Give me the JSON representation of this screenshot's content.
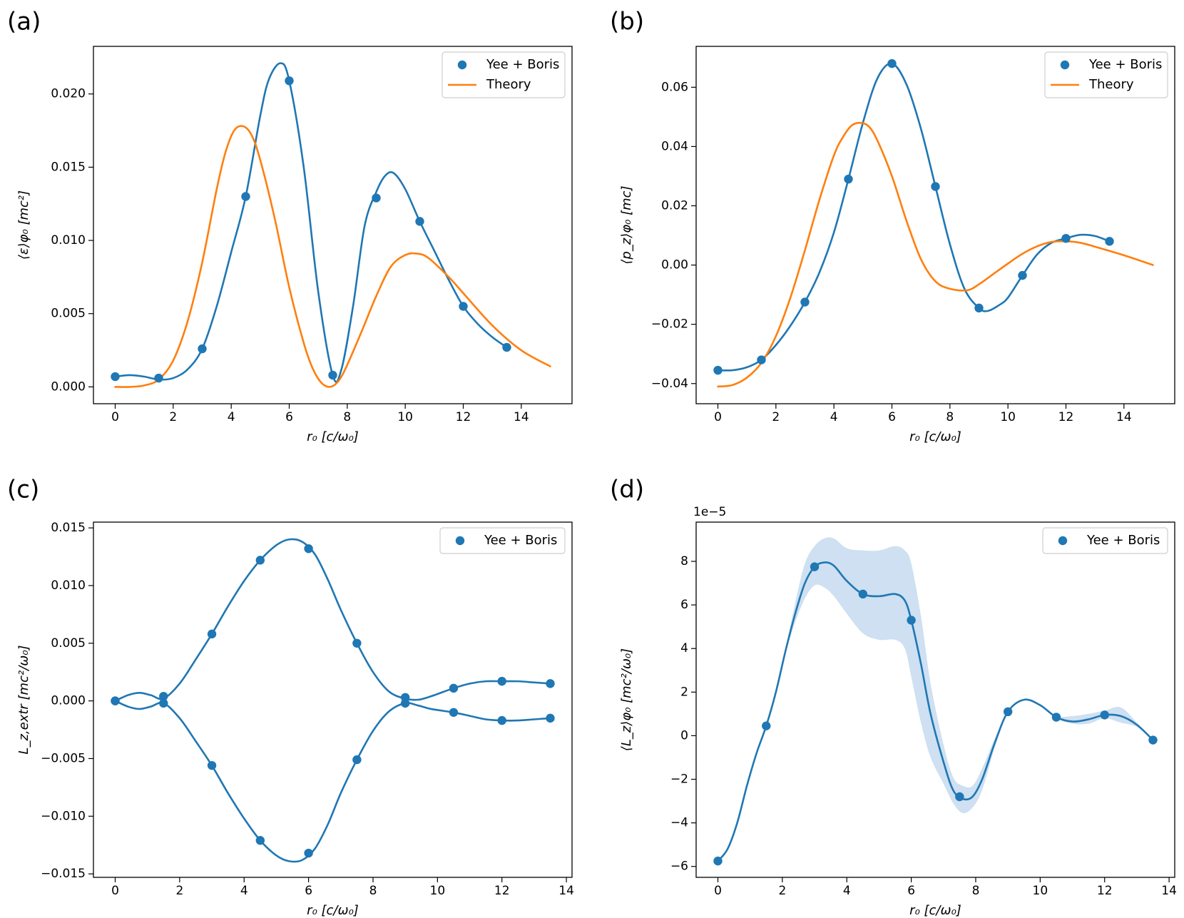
{
  "colors": {
    "series": "#1f77b4",
    "theory": "#ff7f0e",
    "band": "#c6dbef"
  },
  "panels": [
    {
      "id": "a",
      "label": "(a)",
      "xlabel": "r₀ [c/ω₀]",
      "ylabel": "⟨ε⟩φ₀ [mc²]",
      "legend": [
        "Yee + Boris",
        "Theory"
      ],
      "xlim": [
        -0.75,
        15.75
      ],
      "ylim": [
        -0.00115,
        0.02325
      ],
      "xticks": [
        0,
        2,
        4,
        6,
        8,
        10,
        12,
        14
      ],
      "xtick_labels": [
        "0",
        "2",
        "4",
        "6",
        "8",
        "10",
        "12",
        "14"
      ],
      "yticks": [
        0,
        0.005,
        0.01,
        0.015,
        0.02
      ],
      "ytick_labels": [
        "0.000",
        "0.005",
        "0.010",
        "0.015",
        "0.020"
      ],
      "offset": ""
    },
    {
      "id": "b",
      "label": "(b)",
      "xlabel": "r₀ [c/ω₀]",
      "ylabel": "⟨p_z⟩φ₀ [mc]",
      "legend": [
        "Yee + Boris",
        "Theory"
      ],
      "xlim": [
        -0.75,
        15.75
      ],
      "ylim": [
        -0.0468,
        0.0738
      ],
      "xticks": [
        0,
        2,
        4,
        6,
        8,
        10,
        12,
        14
      ],
      "xtick_labels": [
        "0",
        "2",
        "4",
        "6",
        "8",
        "10",
        "12",
        "14"
      ],
      "yticks": [
        -0.04,
        -0.02,
        0,
        0.02,
        0.04,
        0.06
      ],
      "ytick_labels": [
        "−0.04",
        "−0.02",
        "0.00",
        "0.02",
        "0.04",
        "0.06"
      ],
      "offset": ""
    },
    {
      "id": "c",
      "label": "(c)",
      "xlabel": "r₀ [c/ω₀]",
      "ylabel": "L_z,extr [mc²/ω₀]",
      "legend": [
        "Yee + Boris"
      ],
      "xlim": [
        -0.675,
        14.175
      ],
      "ylim": [
        -0.0153,
        0.0155
      ],
      "xticks": [
        0,
        2,
        4,
        6,
        8,
        10,
        12,
        14
      ],
      "xtick_labels": [
        "0",
        "2",
        "4",
        "6",
        "8",
        "10",
        "12",
        "14"
      ],
      "yticks": [
        -0.015,
        -0.01,
        -0.005,
        0,
        0.005,
        0.01,
        0.015
      ],
      "ytick_labels": [
        "−0.015",
        "−0.010",
        "−0.005",
        "0.000",
        "0.005",
        "0.010",
        "0.015"
      ],
      "offset": ""
    },
    {
      "id": "d",
      "label": "(d)",
      "xlabel": "r₀ [c/ω₀]",
      "ylabel": "⟨L_z⟩φ₀ [mc²/ω₀]",
      "legend": [
        "Yee + Boris"
      ],
      "xlim": [
        -0.675,
        14.175
      ],
      "ylim": [
        -6.5,
        9.8
      ],
      "xticks": [
        0,
        2,
        4,
        6,
        8,
        10,
        12,
        14
      ],
      "xtick_labels": [
        "0",
        "2",
        "4",
        "6",
        "8",
        "10",
        "12",
        "14"
      ],
      "yticks": [
        -6,
        -4,
        -2,
        0,
        2,
        4,
        6,
        8
      ],
      "ytick_labels": [
        "−6",
        "−4",
        "−2",
        "0",
        "2",
        "4",
        "6",
        "8"
      ],
      "offset": "1e−5"
    }
  ],
  "chart_data": [
    {
      "panel": "a",
      "type": "scatter+line",
      "title": "",
      "xlabel": "r₀ [c/ω₀]",
      "ylabel": "⟨ε⟩φ₀ [mc²]",
      "series": [
        {
          "name": "Yee + Boris",
          "kind": "markers",
          "x": [
            0,
            1.5,
            3,
            4.5,
            6,
            7.5,
            9,
            10.5,
            12,
            13.5
          ],
          "y": [
            0.0007,
            0.0006,
            0.0026,
            0.013,
            0.0209,
            0.0008,
            0.0129,
            0.0113,
            0.0055,
            0.0027
          ]
        },
        {
          "name": "Yee + Boris fit",
          "kind": "line",
          "x": [
            0,
            0.5,
            1.0,
            1.5,
            2.0,
            2.5,
            3.0,
            3.5,
            4.0,
            4.5,
            5.0,
            5.3,
            5.7,
            6.0,
            6.5,
            7.0,
            7.5,
            7.8,
            8.2,
            8.6,
            9.0,
            9.3,
            9.6,
            10.0,
            10.5,
            11.0,
            11.5,
            12.0,
            12.5,
            13.0,
            13.5
          ],
          "y": [
            0.0007,
            0.0008,
            0.0007,
            0.0005,
            0.0006,
            0.0012,
            0.0026,
            0.0055,
            0.0092,
            0.013,
            0.0185,
            0.021,
            0.0221,
            0.0209,
            0.015,
            0.0065,
            0.0008,
            0.0012,
            0.0055,
            0.011,
            0.0133,
            0.0144,
            0.0146,
            0.0135,
            0.0113,
            0.0093,
            0.0073,
            0.0055,
            0.0043,
            0.0034,
            0.0027
          ]
        },
        {
          "name": "Theory",
          "kind": "line",
          "x": [
            0,
            0.5,
            1.0,
            1.5,
            2.0,
            2.5,
            3.0,
            3.5,
            3.8,
            4.1,
            4.4,
            4.7,
            5.0,
            5.5,
            6.0,
            6.5,
            6.8,
            7.1,
            7.4,
            7.7,
            8.0,
            8.5,
            9.0,
            9.5,
            10.0,
            10.4,
            10.8,
            11.5,
            12.0,
            13.0,
            14.0,
            15.0
          ],
          "y": [
            0,
            0,
            0.0001,
            0.0005,
            0.0018,
            0.0045,
            0.0085,
            0.0135,
            0.016,
            0.0175,
            0.0178,
            0.0172,
            0.0155,
            0.0115,
            0.0068,
            0.003,
            0.0013,
            0.0003,
            0,
            0.0004,
            0.0015,
            0.0038,
            0.0062,
            0.0082,
            0.009,
            0.0091,
            0.0088,
            0.0075,
            0.0064,
            0.0042,
            0.0025,
            0.0014
          ]
        }
      ]
    },
    {
      "panel": "b",
      "type": "scatter+line",
      "title": "",
      "xlabel": "r₀ [c/ω₀]",
      "ylabel": "⟨p_z⟩φ₀ [mc]",
      "series": [
        {
          "name": "Yee + Boris",
          "kind": "markers",
          "x": [
            0,
            1.5,
            3,
            4.5,
            6,
            7.5,
            9,
            10.5,
            12,
            13.5
          ],
          "y": [
            -0.0355,
            -0.032,
            -0.0125,
            0.029,
            0.068,
            0.0265,
            -0.0145,
            -0.0035,
            0.009,
            0.008
          ]
        },
        {
          "name": "Yee + Boris fit",
          "kind": "line",
          "x": [
            0,
            0.5,
            1.0,
            1.5,
            2.0,
            2.5,
            3.0,
            3.5,
            4.0,
            4.5,
            5.0,
            5.5,
            6.0,
            6.5,
            7.0,
            7.5,
            8.0,
            8.5,
            9.0,
            9.3,
            9.7,
            10.0,
            10.5,
            11.0,
            11.5,
            12.0,
            12.5,
            13.0,
            13.5
          ],
          "y": [
            -0.0355,
            -0.0355,
            -0.0345,
            -0.032,
            -0.027,
            -0.0205,
            -0.0125,
            -0.0025,
            0.011,
            0.029,
            0.048,
            0.063,
            0.068,
            0.061,
            0.046,
            0.0265,
            0.007,
            -0.008,
            -0.0145,
            -0.0155,
            -0.0135,
            -0.011,
            -0.0035,
            0.0035,
            0.0075,
            0.009,
            0.0102,
            0.0098,
            0.008
          ]
        },
        {
          "name": "Theory",
          "kind": "line",
          "x": [
            0,
            0.5,
            1.0,
            1.5,
            2.0,
            2.5,
            3.0,
            3.5,
            4.0,
            4.3,
            4.6,
            4.9,
            5.2,
            5.5,
            6.0,
            6.5,
            7.0,
            7.5,
            8.0,
            8.6,
            9.0,
            9.5,
            10.0,
            10.5,
            11.0,
            11.5,
            12.0,
            12.5,
            13.0,
            14.0,
            15.0
          ],
          "y": [
            -0.041,
            -0.0405,
            -0.038,
            -0.033,
            -0.024,
            -0.011,
            0.005,
            0.022,
            0.037,
            0.043,
            0.047,
            0.048,
            0.0468,
            0.042,
            0.03,
            0.015,
            0.002,
            -0.0055,
            -0.008,
            -0.0085,
            -0.0065,
            -0.003,
            0.0005,
            0.0038,
            0.0063,
            0.0078,
            0.008,
            0.0075,
            0.0062,
            0.0033,
            0.0
          ]
        }
      ]
    },
    {
      "panel": "c",
      "type": "scatter+line",
      "title": "",
      "xlabel": "r₀ [c/ω₀]",
      "ylabel": "L_z,extr [mc²/ω₀]",
      "series": [
        {
          "name": "Yee + Boris (upper)",
          "kind": "markers",
          "x": [
            0,
            1.5,
            3,
            4.5,
            6,
            7.5,
            9,
            10.5,
            12,
            13.5
          ],
          "y": [
            0,
            0.0004,
            0.0058,
            0.0122,
            0.0132,
            0.005,
            0.0003,
            0.0011,
            0.0017,
            0.0015
          ]
        },
        {
          "name": "Yee + Boris (lower)",
          "kind": "markers",
          "x": [
            0,
            1.5,
            3,
            4.5,
            6,
            7.5,
            9,
            10.5,
            12,
            13.5
          ],
          "y": [
            0,
            -0.0002,
            -0.0056,
            -0.0121,
            -0.0132,
            -0.0051,
            -0.0002,
            -0.001,
            -0.0017,
            -0.0015
          ]
        },
        {
          "name": "upper fit",
          "kind": "line",
          "x": [
            0,
            0.4,
            0.75,
            1.1,
            1.5,
            2.0,
            2.5,
            3.0,
            3.5,
            4.0,
            4.5,
            5.0,
            5.4,
            5.8,
            6.2,
            6.6,
            7.0,
            7.5,
            8.0,
            8.5,
            9.0,
            9.4,
            9.8,
            10.5,
            11.0,
            11.5,
            12.0,
            12.5,
            13.0,
            13.5
          ],
          "y": [
            0,
            0.0005,
            0.0007,
            0.0005,
            0.0002,
            0.0015,
            0.0036,
            0.0058,
            0.0082,
            0.0104,
            0.0122,
            0.0135,
            0.014,
            0.0138,
            0.0127,
            0.0105,
            0.0079,
            0.005,
            0.0025,
            0.0008,
            0.0002,
            0.0001,
            0.0004,
            0.0011,
            0.0015,
            0.0017,
            0.0017,
            0.0017,
            0.0016,
            0.0015
          ]
        },
        {
          "name": "lower fit",
          "kind": "line",
          "x": [
            0,
            0.4,
            0.75,
            1.1,
            1.5,
            2.0,
            2.5,
            3.0,
            3.5,
            4.0,
            4.5,
            5.0,
            5.4,
            5.8,
            6.2,
            6.6,
            7.0,
            7.5,
            8.0,
            8.5,
            9.0,
            9.4,
            9.8,
            10.5,
            11.0,
            11.5,
            12.0,
            12.5,
            13.0,
            13.5
          ],
          "y": [
            0,
            -0.0005,
            -0.0007,
            -0.0005,
            -0.0002,
            -0.0015,
            -0.0035,
            -0.0056,
            -0.008,
            -0.0102,
            -0.0121,
            -0.0134,
            -0.0139,
            -0.0138,
            -0.0128,
            -0.0107,
            -0.008,
            -0.0051,
            -0.0026,
            -0.0009,
            -0.0002,
            -0.0004,
            -0.0007,
            -0.001,
            -0.0013,
            -0.0016,
            -0.0017,
            -0.0017,
            -0.0016,
            -0.0015
          ]
        }
      ]
    },
    {
      "panel": "d",
      "type": "scatter+line",
      "title": "",
      "xlabel": "r₀ [c/ω₀]",
      "ylabel": "⟨L_z⟩φ₀ [mc²/ω₀]",
      "y_scale": "1e-5",
      "series": [
        {
          "name": "Yee + Boris",
          "kind": "markers",
          "x": [
            0,
            1.5,
            3,
            4.5,
            6,
            7.5,
            9,
            10.5,
            12,
            13.5
          ],
          "y": [
            -5.75,
            0.45,
            7.75,
            6.5,
            5.3,
            -2.8,
            1.1,
            0.85,
            0.95,
            -0.2
          ]
        },
        {
          "name": "Yee + Boris fit",
          "kind": "line",
          "x": [
            0,
            0.3,
            0.6,
            0.9,
            1.2,
            1.5,
            1.8,
            2.1,
            2.4,
            2.7,
            3.0,
            3.3,
            3.6,
            4.0,
            4.5,
            5.0,
            5.5,
            5.8,
            6.0,
            6.3,
            6.6,
            7.0,
            7.3,
            7.6,
            7.9,
            8.2,
            8.6,
            9.0,
            9.5,
            10.0,
            10.5,
            11.0,
            11.5,
            12.0,
            12.5,
            13.0,
            13.5
          ],
          "y": [
            -5.75,
            -5.2,
            -4.0,
            -2.3,
            -0.8,
            0.45,
            2.0,
            3.9,
            5.6,
            7.0,
            7.75,
            7.95,
            7.8,
            7.1,
            6.5,
            6.4,
            6.5,
            6.2,
            5.3,
            3.3,
            1.0,
            -1.2,
            -2.5,
            -2.9,
            -2.8,
            -2.0,
            -0.3,
            1.1,
            1.65,
            1.4,
            0.85,
            0.65,
            0.75,
            0.95,
            0.9,
            0.5,
            -0.2
          ]
        },
        {
          "name": "band upper",
          "kind": "band-top",
          "x": [
            0,
            0.3,
            0.6,
            0.9,
            1.2,
            1.5,
            1.8,
            2.1,
            2.4,
            2.7,
            3.0,
            3.3,
            3.6,
            4.0,
            4.5,
            5.0,
            5.5,
            5.8,
            6.0,
            6.3,
            6.6,
            7.0,
            7.3,
            7.6,
            7.9,
            8.2,
            8.6,
            9.0,
            9.5,
            10.0,
            10.5,
            11.0,
            11.5,
            12.0,
            12.5,
            13.0,
            13.5
          ],
          "y": [
            -5.75,
            -5.2,
            -4.0,
            -2.3,
            -0.8,
            0.45,
            2.0,
            4.0,
            6.1,
            7.9,
            8.7,
            9.05,
            9.05,
            8.6,
            8.5,
            8.5,
            8.7,
            8.5,
            7.9,
            5.5,
            2.4,
            -0.4,
            -1.9,
            -2.3,
            -2.3,
            -1.5,
            -0.1,
            1.1,
            1.65,
            1.4,
            0.9,
            0.9,
            1.0,
            1.15,
            1.3,
            0.6,
            -0.2
          ]
        },
        {
          "name": "band lower",
          "kind": "band-bottom",
          "x": [
            0,
            0.3,
            0.6,
            0.9,
            1.2,
            1.5,
            1.8,
            2.1,
            2.4,
            2.7,
            3.0,
            3.3,
            3.6,
            4.0,
            4.5,
            5.0,
            5.5,
            5.8,
            6.0,
            6.3,
            6.6,
            7.0,
            7.3,
            7.6,
            7.9,
            8.2,
            8.6,
            9.0,
            9.5,
            10.0,
            10.5,
            11.0,
            11.5,
            12.0,
            12.5,
            13.0,
            13.5
          ],
          "y": [
            -5.75,
            -5.2,
            -4.0,
            -2.3,
            -0.8,
            0.45,
            2.0,
            3.8,
            5.2,
            6.3,
            6.9,
            6.8,
            6.4,
            5.6,
            4.7,
            4.4,
            4.4,
            4.0,
            2.7,
            0.6,
            -1.0,
            -2.2,
            -3.1,
            -3.55,
            -3.3,
            -2.5,
            -0.5,
            1.1,
            1.65,
            1.4,
            0.8,
            0.55,
            0.55,
            0.8,
            0.6,
            0.4,
            -0.2
          ]
        }
      ]
    }
  ]
}
